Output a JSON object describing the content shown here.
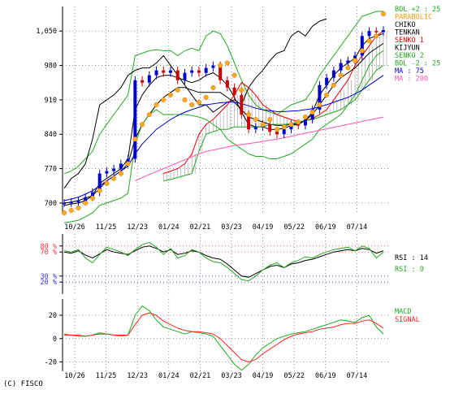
{
  "copyright": "(C) FISCO",
  "chart_data": [
    {
      "type": "line",
      "panel": "price",
      "ylim": [
        680,
        1100
      ],
      "y_ticks": [
        {
          "value": 1050,
          "label": "1,050"
        },
        {
          "value": 980,
          "label": "980"
        },
        {
          "value": 910,
          "label": "910"
        },
        {
          "value": 840,
          "label": "840"
        },
        {
          "value": 770,
          "label": "770"
        },
        {
          "value": 700,
          "label": "700"
        }
      ],
      "x_tick_labels": [
        "10/26",
        "11/25",
        "12/23",
        "01/24",
        "02/21",
        "03/23",
        "04/19",
        "05/22",
        "06/19",
        "07/14"
      ],
      "grid": true,
      "candles": {
        "name": "price",
        "color_up": "#0000cc",
        "color_down": "#cc0000",
        "close": [
          700,
          702,
          704,
          712,
          722,
          760,
          765,
          770,
          780,
          790,
          950,
          945,
          960,
          970,
          965,
          970,
          950,
          965,
          970,
          965,
          975,
          980,
          950,
          935,
          920,
          880,
          850,
          855,
          860,
          845,
          840,
          850,
          860,
          858,
          870,
          890,
          940,
          955,
          970,
          985,
          990,
          1000,
          1040,
          1050,
          1048,
          1052
        ]
      },
      "series": [
        {
          "name": "BOL +2 : 25",
          "color": "#22aa22",
          "values": [
            760,
            765,
            775,
            790,
            805,
            840,
            860,
            880,
            900,
            920,
            1000,
            1005,
            1010,
            1012,
            1010,
            1010,
            1000,
            1010,
            1015,
            1010,
            1040,
            1050,
            1045,
            1020,
            985,
            950,
            920,
            900,
            890,
            885,
            880,
            890,
            900,
            905,
            910,
            930,
            960,
            980,
            1000,
            1020,
            1040,
            1060,
            1080,
            1085,
            1090,
            1090
          ]
        },
        {
          "name": "PARABOLIC",
          "color": "#ff9900",
          "values": [
            680,
            685,
            690,
            700,
            710,
            725,
            740,
            750,
            760,
            780,
            830,
            860,
            880,
            900,
            910,
            920,
            930,
            910,
            900,
            905,
            915,
            935,
            980,
            985,
            960,
            930,
            880,
            870,
            860,
            870,
            850,
            855,
            860,
            865,
            875,
            885,
            900,
            920,
            940,
            960,
            975,
            990,
            1010,
            1030,
            1040,
            1085
          ]
        },
        {
          "name": "CHIKO",
          "color": "#000000",
          "values": [
            730,
            750,
            760,
            780,
            830,
            900,
            910,
            920,
            935,
            960,
            970,
            975,
            975,
            985,
            1000,
            980,
            960,
            940,
            920,
            900,
            900,
            885,
            895,
            905,
            910,
            900,
            935,
            955,
            970,
            990,
            1005,
            1010,
            1040,
            1050,
            1040,
            1060,
            1070,
            1075,
            null,
            null,
            null,
            null,
            null,
            null,
            null,
            null
          ]
        },
        {
          "name": "TENKAN",
          "color": "#000000",
          "values": [
            695,
            698,
            700,
            705,
            715,
            740,
            750,
            760,
            770,
            790,
            890,
            920,
            940,
            955,
            960,
            960,
            955,
            950,
            945,
            950,
            960,
            965,
            955,
            940,
            915,
            885,
            860,
            855,
            855,
            850,
            850,
            852,
            858,
            860,
            868,
            885,
            920,
            940,
            960,
            975,
            985,
            995,
            1020,
            1035,
            1040,
            1045
          ]
        },
        {
          "name": "SENKO 1",
          "color": "#ee0000",
          "values": [
            null,
            null,
            null,
            null,
            null,
            null,
            null,
            null,
            null,
            null,
            null,
            null,
            null,
            null,
            760,
            765,
            770,
            780,
            800,
            840,
            860,
            870,
            885,
            900,
            920,
            945,
            935,
            920,
            900,
            890,
            880,
            875,
            870,
            865,
            868,
            872,
            880,
            890,
            910,
            930,
            950,
            980,
            1000,
            1020,
            1040,
            1050
          ]
        },
        {
          "name": "KIJYUN",
          "color": "#000000",
          "values": [
            700,
            702,
            705,
            710,
            715,
            730,
            745,
            755,
            765,
            780,
            830,
            860,
            880,
            900,
            915,
            925,
            935,
            935,
            930,
            925,
            925,
            925,
            925,
            915,
            905,
            890,
            875,
            870,
            865,
            860,
            858,
            858,
            860,
            862,
            868,
            880,
            900,
            920,
            940,
            955,
            965,
            975,
            990,
            1005,
            1015,
            1025
          ]
        },
        {
          "name": "SENKO 2",
          "color": "#22aa22",
          "values": [
            null,
            null,
            null,
            null,
            null,
            null,
            null,
            null,
            null,
            null,
            null,
            null,
            null,
            null,
            745,
            748,
            752,
            756,
            760,
            805,
            840,
            845,
            850,
            850,
            855,
            855,
            855,
            855,
            855,
            860,
            860,
            860,
            862,
            865,
            868,
            870,
            875,
            880,
            885,
            890,
            900,
            910,
            930,
            950,
            970,
            980
          ]
        },
        {
          "name": "BOL -2 : 25",
          "color": "#22aa22",
          "values": [
            660,
            662,
            665,
            672,
            680,
            695,
            700,
            705,
            710,
            720,
            820,
            860,
            880,
            890,
            880,
            880,
            880,
            880,
            878,
            875,
            870,
            860,
            850,
            830,
            820,
            810,
            800,
            795,
            795,
            790,
            790,
            795,
            800,
            810,
            820,
            830,
            850,
            860,
            870,
            880,
            900,
            920,
            950,
            980,
            1000,
            1010
          ]
        },
        {
          "name": "MA : 75",
          "color": "#0000cc",
          "values": [
            705,
            708,
            712,
            718,
            725,
            735,
            745,
            755,
            765,
            775,
            800,
            820,
            835,
            850,
            860,
            870,
            878,
            885,
            890,
            895,
            900,
            902,
            904,
            905,
            905,
            902,
            898,
            893,
            890,
            888,
            886,
            886,
            887,
            888,
            890,
            892,
            896,
            900,
            905,
            910,
            915,
            922,
            930,
            940,
            950,
            960
          ]
        },
        {
          "name": "MA : 200",
          "color": "#ff55aa",
          "values": [
            null,
            null,
            null,
            null,
            null,
            null,
            null,
            null,
            null,
            null,
            745,
            752,
            758,
            764,
            770,
            776,
            782,
            788,
            794,
            800,
            805,
            808,
            811,
            814,
            817,
            819,
            821,
            823,
            825,
            828,
            830,
            833,
            836,
            839,
            842,
            845,
            848,
            851,
            854,
            857,
            860,
            863,
            866,
            869,
            872,
            875
          ]
        }
      ]
    },
    {
      "type": "line",
      "panel": "rsi",
      "ylim": [
        0,
        100
      ],
      "y_ticks": [
        {
          "value": 80,
          "label": "80 %"
        },
        {
          "value": 70,
          "label": "70 %"
        },
        {
          "value": 30,
          "label": "30 %"
        },
        {
          "value": 20,
          "label": "20 %"
        }
      ],
      "reference_lines": [
        {
          "value": 80,
          "color": "#ff3333"
        },
        {
          "value": 70,
          "color": "#ff3333"
        },
        {
          "value": 30,
          "color": "#3333ff"
        },
        {
          "value": 20,
          "color": "#3333ff"
        }
      ],
      "series": [
        {
          "name": "RSI : 14",
          "color": "#000000",
          "values": [
            70,
            68,
            72,
            65,
            60,
            67,
            74,
            70,
            68,
            66,
            72,
            78,
            80,
            76,
            70,
            74,
            66,
            68,
            72,
            70,
            64,
            60,
            58,
            50,
            40,
            30,
            28,
            34,
            40,
            46,
            48,
            44,
            50,
            52,
            56,
            58,
            62,
            66,
            70,
            72,
            74,
            72,
            76,
            74,
            68,
            72
          ]
        },
        {
          "name": "RSI : 9",
          "color": "#22aa22",
          "values": [
            72,
            70,
            74,
            60,
            52,
            66,
            78,
            74,
            70,
            64,
            74,
            82,
            86,
            78,
            66,
            76,
            60,
            64,
            74,
            70,
            60,
            54,
            52,
            44,
            34,
            24,
            22,
            30,
            40,
            48,
            52,
            44,
            52,
            56,
            62,
            60,
            66,
            70,
            74,
            76,
            78,
            72,
            80,
            76,
            60,
            70
          ]
        }
      ]
    },
    {
      "type": "line",
      "panel": "macd",
      "ylim": [
        -28,
        34
      ],
      "y_ticks": [
        {
          "value": 20,
          "label": "20"
        },
        {
          "value": 0,
          "label": "0"
        },
        {
          "value": -20,
          "label": "-20"
        }
      ],
      "x_tick_labels": [
        "10/26",
        "11/25",
        "12/23",
        "01/24",
        "02/21",
        "03/23",
        "04/19",
        "05/22",
        "06/19",
        "07/14"
      ],
      "series": [
        {
          "name": "MACD",
          "color": "#22aa22",
          "values": [
            4,
            3,
            2,
            2,
            3,
            5,
            4,
            3,
            2,
            3,
            20,
            28,
            24,
            16,
            10,
            8,
            6,
            4,
            6,
            5,
            4,
            2,
            -6,
            -14,
            -22,
            -27,
            -22,
            -14,
            -8,
            -4,
            0,
            2,
            4,
            5,
            6,
            8,
            10,
            12,
            14,
            16,
            15,
            14,
            18,
            20,
            10,
            4
          ]
        },
        {
          "name": "SIGNAL",
          "color": "#ff2222",
          "values": [
            3,
            3,
            3,
            2,
            3,
            4,
            4,
            3,
            3,
            3,
            12,
            20,
            22,
            20,
            15,
            12,
            9,
            7,
            6,
            6,
            5,
            4,
            0,
            -6,
            -12,
            -18,
            -20,
            -18,
            -13,
            -9,
            -5,
            -1,
            2,
            4,
            5,
            6,
            8,
            9,
            10,
            12,
            13,
            13,
            15,
            16,
            13,
            9
          ]
        }
      ]
    }
  ]
}
